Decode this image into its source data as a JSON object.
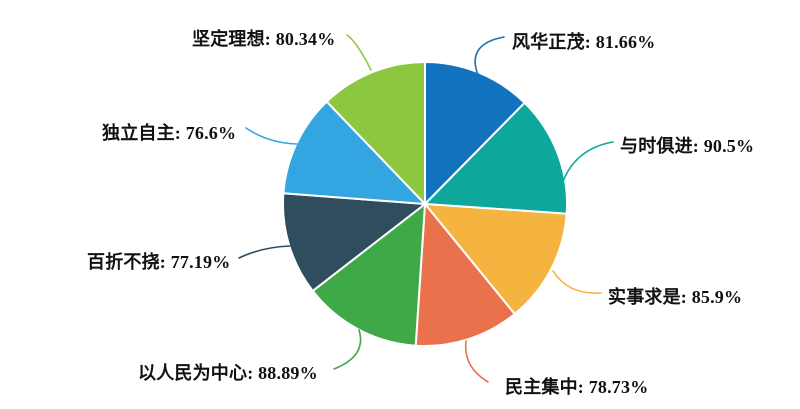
{
  "figure": {
    "background_color": "#ffffff",
    "text_color": "#111111"
  },
  "chart_data": {
    "type": "pie",
    "title": "",
    "unit": "%",
    "legend_position": "none",
    "labeling": "callout labels with curved leader lines, format 'label: value%'",
    "start_angle": "12 o'clock, clockwise",
    "slices": [
      {
        "label": "风华正茂",
        "value": 81.66,
        "display": "风华正茂: 81.66%",
        "color": "#1173bd"
      },
      {
        "label": "与时俱进",
        "value": 90.5,
        "display": "与时俱进: 90.5%",
        "color": "#0da89b"
      },
      {
        "label": "实事求是",
        "value": 85.9,
        "display": "实事求是: 85.9%",
        "color": "#f5b43f"
      },
      {
        "label": "民主集中",
        "value": 78.73,
        "display": "民主集中: 78.73%",
        "color": "#e9724d"
      },
      {
        "label": "以人民为中心",
        "value": 88.89,
        "display": "以人民为中心: 88.89%",
        "color": "#3fa948"
      },
      {
        "label": "百折不挠",
        "value": 77.19,
        "display": "百折不挠: 77.19%",
        "color": "#2f4d5c"
      },
      {
        "label": "独立自主",
        "value": 76.6,
        "display": "独立自主: 76.6%",
        "color": "#33a5e0"
      },
      {
        "label": "坚定理想",
        "value": 80.34,
        "display": "坚定理想: 80.34%",
        "color": "#8dc63f"
      }
    ]
  }
}
